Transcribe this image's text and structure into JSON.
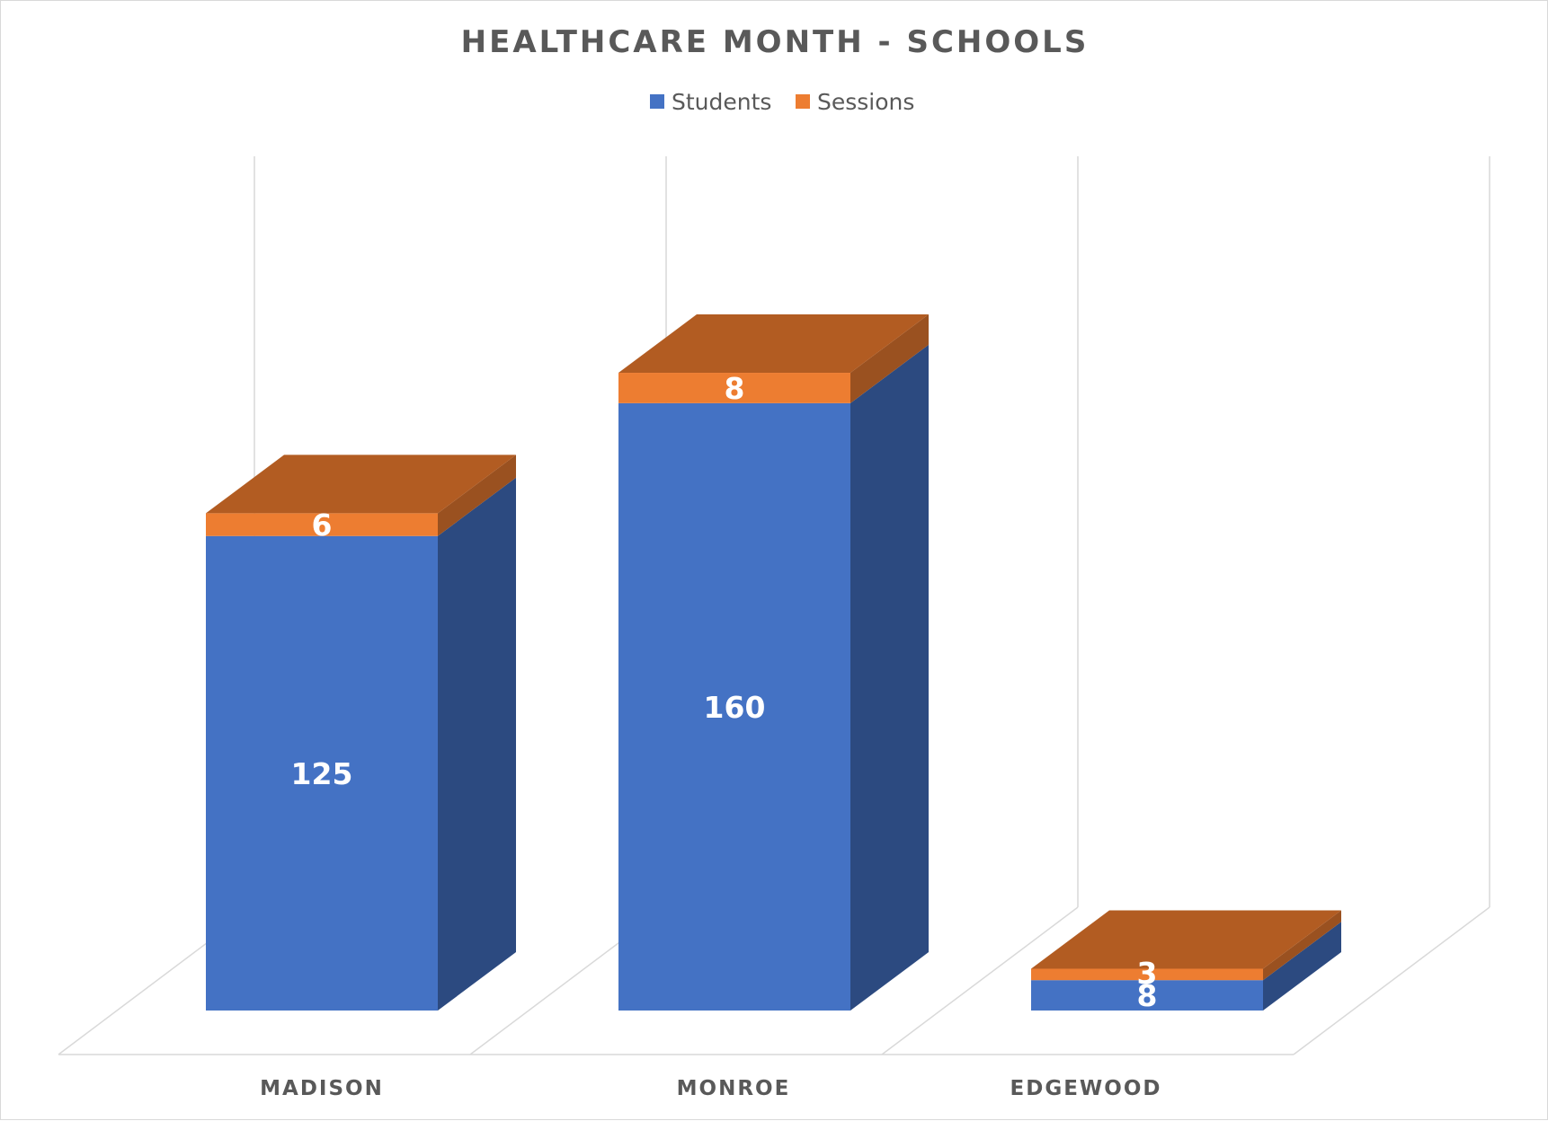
{
  "colors": {
    "students_front": "#4472c4",
    "students_side": "#2c4a80",
    "sessions_front": "#ed7d31",
    "sessions_side": "#9a5120",
    "sessions_top": "#b25c22",
    "grid": "#d9d9d9",
    "text": "#595959"
  },
  "chart_data": {
    "type": "bar",
    "stacked": true,
    "three_d": true,
    "title": "HEALTHCARE MONTH - SCHOOLS",
    "categories": [
      "MADISON",
      "MONROE",
      "EDGEWOOD"
    ],
    "series": [
      {
        "name": "Students",
        "values": [
          125,
          160,
          8
        ]
      },
      {
        "name": "Sessions",
        "values": [
          6,
          8,
          3
        ]
      }
    ],
    "legend_position": "top",
    "ylim": [
      0,
      200
    ],
    "grid": true
  }
}
